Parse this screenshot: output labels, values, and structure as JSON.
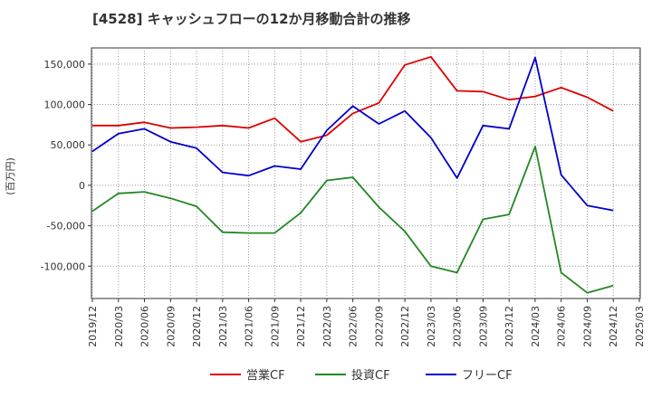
{
  "chart_data": {
    "type": "line",
    "title": "[4528]  キャッシュフローの12か月移動合計の推移",
    "ylabel": "(百万円)",
    "ylim": [
      -140000,
      170000
    ],
    "yticks": [
      150000,
      100000,
      50000,
      0,
      -50000,
      -100000
    ],
    "ytick_labels": [
      "150,000",
      "100,000",
      "50,000",
      "0",
      "-50,000",
      "-100,000"
    ],
    "grid": true,
    "legend_position": "bottom",
    "x": [
      "2019/12",
      "2020/03",
      "2020/06",
      "2020/09",
      "2020/12",
      "2021/03",
      "2021/06",
      "2021/09",
      "2021/12",
      "2022/03",
      "2022/06",
      "2022/09",
      "2022/12",
      "2023/03",
      "2023/06",
      "2023/09",
      "2023/12",
      "2024/03",
      "2024/06",
      "2024/09",
      "2024/12",
      "2025/03"
    ],
    "series": [
      {
        "name": "営業CF",
        "color": "#dd0000",
        "values": [
          74000,
          74000,
          78000,
          71000,
          72000,
          74000,
          71000,
          83000,
          54000,
          62000,
          89000,
          102000,
          149000,
          159000,
          117000,
          116000,
          106000,
          110000,
          121000,
          109000,
          92000,
          null
        ]
      },
      {
        "name": "投資CF",
        "color": "#228822",
        "values": [
          -32000,
          -10000,
          -8000,
          -16000,
          -26000,
          -58000,
          -59000,
          -59000,
          -34000,
          6000,
          10000,
          -27000,
          -57000,
          -100000,
          -108000,
          -42000,
          -36000,
          48000,
          -108000,
          -133000,
          -124000,
          null
        ]
      },
      {
        "name": "フリーCF",
        "color": "#0000cc",
        "values": [
          42000,
          64000,
          70000,
          54000,
          46000,
          16000,
          12000,
          24000,
          20000,
          68000,
          98000,
          76000,
          92000,
          59000,
          9000,
          74000,
          70000,
          158000,
          13000,
          -25000,
          -31000,
          null
        ]
      }
    ]
  }
}
